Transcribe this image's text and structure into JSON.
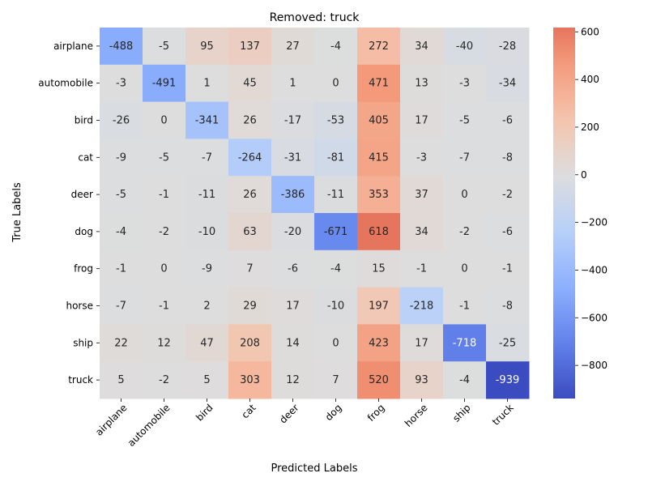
{
  "chart_data": {
    "type": "heatmap",
    "title": "Removed: truck",
    "xlabel": "Predicted Labels",
    "ylabel": "True Labels",
    "x_categories": [
      "airplane",
      "automobile",
      "bird",
      "cat",
      "deer",
      "dog",
      "frog",
      "horse",
      "ship",
      "truck"
    ],
    "y_categories": [
      "airplane",
      "automobile",
      "bird",
      "cat",
      "deer",
      "dog",
      "frog",
      "horse",
      "ship",
      "truck"
    ],
    "values": [
      [
        -488,
        -5,
        95,
        137,
        27,
        -4,
        272,
        34,
        -40,
        -28
      ],
      [
        -3,
        -491,
        1,
        45,
        1,
        0,
        471,
        13,
        -3,
        -34
      ],
      [
        -26,
        0,
        -341,
        26,
        -17,
        -53,
        405,
        17,
        -5,
        -6
      ],
      [
        -9,
        -5,
        -7,
        -264,
        -31,
        -81,
        415,
        -3,
        -7,
        -8
      ],
      [
        -5,
        -1,
        -11,
        26,
        -386,
        -11,
        353,
        37,
        0,
        -2
      ],
      [
        -4,
        -2,
        -10,
        63,
        -20,
        -671,
        618,
        34,
        -2,
        -6
      ],
      [
        -1,
        0,
        -9,
        7,
        -6,
        -4,
        15,
        -1,
        0,
        -1
      ],
      [
        -7,
        -1,
        2,
        29,
        17,
        -10,
        197,
        -218,
        -1,
        -8
      ],
      [
        22,
        12,
        47,
        208,
        14,
        0,
        423,
        17,
        -718,
        -25
      ],
      [
        5,
        -2,
        5,
        303,
        12,
        7,
        520,
        93,
        -4,
        -939
      ]
    ],
    "colormap": "coolwarm",
    "center": 0,
    "vmin": -939,
    "vmax": 618,
    "colorbar_ticks": [
      600,
      400,
      200,
      0,
      -200,
      -400,
      -600,
      -800
    ]
  }
}
